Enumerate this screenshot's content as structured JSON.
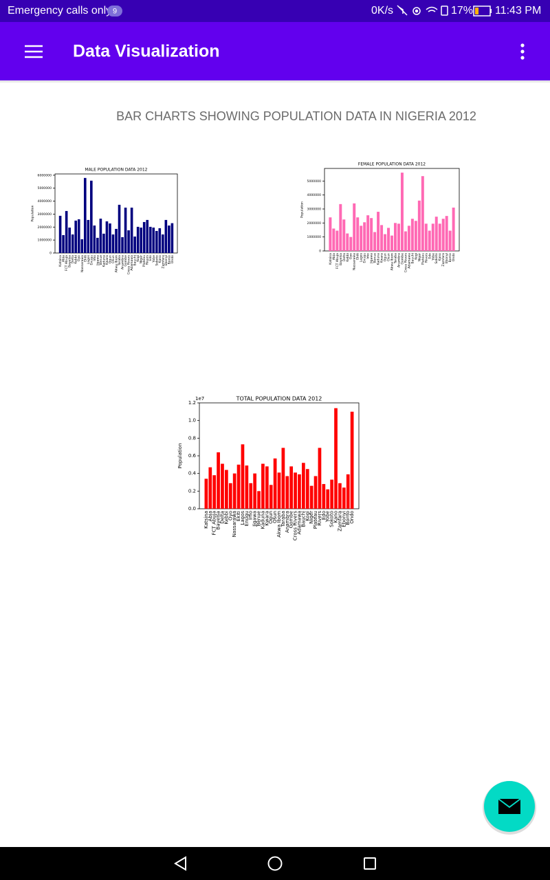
{
  "status_bar": {
    "carrier": "Emergency calls only",
    "badge": "9",
    "speed": "0K/s",
    "battery": "17%",
    "time": "11:43 PM"
  },
  "app_bar": {
    "title": "Data Visualization"
  },
  "page": {
    "heading": "BAR CHARTS SHOWING POPULATION DATA IN NIGERIA 2012"
  },
  "chart_data": [
    {
      "type": "bar",
      "title": "MALE POPULATION DATA 2012",
      "y_label": "Population",
      "color": "#00007f",
      "categories": [
        "Katsina",
        "Abia",
        "FCT Abuja",
        "Bayelsa",
        "Delta",
        "Kebbi",
        "Oyo",
        "Nassarawa",
        "Ekiti",
        "Lagos",
        "Enugu",
        "Imo",
        "Jigawa",
        "Benue",
        "Kaduna",
        "Kwara",
        "Ogun",
        "Osun",
        "Akwa Ibom",
        "Taraba",
        "Anambra",
        "Gombe",
        "Cross Rivers",
        "Adamawa",
        "Bauchi",
        "Kogi",
        "Niger",
        "Plateau",
        "Rivers",
        "Edo",
        "Yobe",
        "Sokoto",
        "Kano",
        "Zamfara",
        "Ebonyi",
        "Borno",
        "Ondo"
      ],
      "values": [
        2870000,
        1380000,
        3240000,
        1960000,
        1430000,
        2500000,
        2600000,
        1060000,
        5790000,
        2550000,
        5580000,
        2120000,
        1170000,
        2650000,
        1490000,
        2440000,
        2280000,
        1430000,
        1860000,
        3720000,
        1220000,
        3500000,
        1750000,
        3500000,
        1270000,
        2020000,
        1960000,
        2390000,
        2550000,
        2020000,
        1960000,
        1700000,
        1910000,
        1430000,
        2550000,
        2120000,
        2300000
      ],
      "ylim": [
        0,
        6100000
      ],
      "yticks": [
        0,
        1000000,
        2000000,
        3000000,
        4000000,
        5000000,
        6000000
      ]
    },
    {
      "type": "bar",
      "title": "FEMALE POPULATION DATA 2012",
      "y_label": "Population",
      "color": "#ff69b4",
      "categories": [
        "Katsina",
        "Abia",
        "FCT Abuja",
        "Bayelsa",
        "Delta",
        "Kebbi",
        "Oyo",
        "Nassarawa",
        "Ekiti",
        "Lagos",
        "Enugu",
        "Imo",
        "Jigawa",
        "Benue",
        "Kaduna",
        "Kwara",
        "Ogun",
        "Osun",
        "Akwa Ibom",
        "Taraba",
        "Anambra",
        "Gombe",
        "Cross Rivers",
        "Adamawa",
        "Bauchi",
        "Kogi",
        "Niger",
        "Plateau",
        "Rivers",
        "Edo",
        "Yobe",
        "Sokoto",
        "Kano",
        "Zamfara",
        "Ebonyi",
        "Borno",
        "Ondo"
      ],
      "values": [
        2400000,
        1600000,
        1450000,
        3350000,
        2250000,
        1250000,
        1000000,
        3400000,
        2400000,
        1800000,
        2050000,
        2550000,
        2350000,
        1350000,
        2800000,
        1850000,
        1200000,
        1650000,
        1100000,
        2000000,
        1950000,
        5600000,
        1400000,
        1800000,
        2300000,
        2150000,
        3600000,
        5350000,
        1950000,
        1450000,
        1950000,
        2450000,
        1950000,
        2300000,
        2500000,
        1450000,
        3100000
      ],
      "ylim": [
        0,
        5900000
      ],
      "yticks": [
        0,
        1000000,
        2000000,
        3000000,
        4000000,
        5000000
      ]
    },
    {
      "type": "bar",
      "title": "TOTAL POPULATION DATA 2012",
      "y_label": "Population",
      "offset_label": "1e7",
      "color": "#ff0000",
      "categories": [
        "Katsina",
        "Abia",
        "FCT Abuja",
        "Bayelsa",
        "Delta",
        "Kebbi",
        "Oyo",
        "Nassarawa",
        "Ekiti",
        "Lagos",
        "Enugu",
        "Imo",
        "Jigawa",
        "Benue",
        "Kaduna",
        "Kwara",
        "Ogun",
        "Osun",
        "Akwa Ibom",
        "Taraba",
        "Anambra",
        "Gombe",
        "Cross Rivers",
        "Adamawa",
        "Bauchi",
        "Kogi",
        "Niger",
        "Plateau",
        "Rivers",
        "Edo",
        "Yobe",
        "Sokoto",
        "Kano",
        "Zamfara",
        "Ebonyi",
        "Borno",
        "Ondo"
      ],
      "values": [
        0.34,
        0.47,
        0.38,
        0.64,
        0.51,
        0.44,
        0.29,
        0.4,
        0.5,
        0.73,
        0.49,
        0.29,
        0.4,
        0.2,
        0.51,
        0.48,
        0.27,
        0.57,
        0.41,
        0.69,
        0.37,
        0.48,
        0.41,
        0.39,
        0.52,
        0.45,
        0.26,
        0.37,
        0.69,
        0.28,
        0.22,
        0.33,
        1.14,
        0.29,
        0.24,
        0.39,
        1.1
      ],
      "ylim": [
        0,
        1.2
      ],
      "yticks": [
        {
          "value": 0,
          "label": "0.0"
        },
        0.2,
        0.4,
        0.6,
        0.8,
        {
          "value": 1,
          "label": "1.0"
        },
        1.2
      ]
    }
  ]
}
